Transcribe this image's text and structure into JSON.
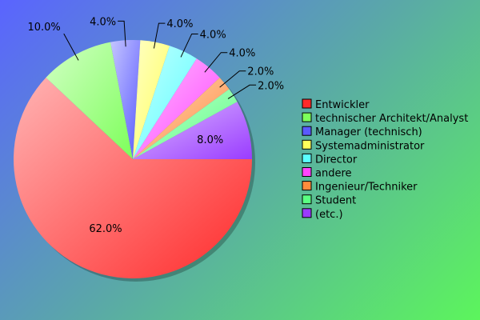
{
  "chart_data": {
    "type": "pie",
    "title": "",
    "legend_position": "right",
    "start_angle_deg": 0,
    "direction": "clockwise",
    "series": [
      {
        "name": "Entwickler",
        "value": 62.0,
        "label": "62.0%",
        "color": "#ff2a2a"
      },
      {
        "name": "technischer Architekt/Analyst",
        "value": 10.0,
        "label": "10.0%",
        "color": "#7dff5a"
      },
      {
        "name": "Manager (technisch)",
        "value": 4.0,
        "label": "4.0%",
        "color": "#5a5aff"
      },
      {
        "name": "Systemadministrator",
        "value": 4.0,
        "label": "4.0%",
        "color": "#ffff5a"
      },
      {
        "name": "Director",
        "value": 4.0,
        "label": "4.0%",
        "color": "#5affff"
      },
      {
        "name": "andere",
        "value": 4.0,
        "label": "4.0%",
        "color": "#ff44ff"
      },
      {
        "name": "Ingenieur/Techniker",
        "value": 2.0,
        "label": "2.0%",
        "color": "#ff8c3c"
      },
      {
        "name": "Student",
        "value": 2.0,
        "label": "2.0%",
        "color": "#5aff82"
      },
      {
        "name": "(etc.)",
        "value": 8.0,
        "label": "8.0%",
        "color": "#9a3cff"
      }
    ]
  }
}
